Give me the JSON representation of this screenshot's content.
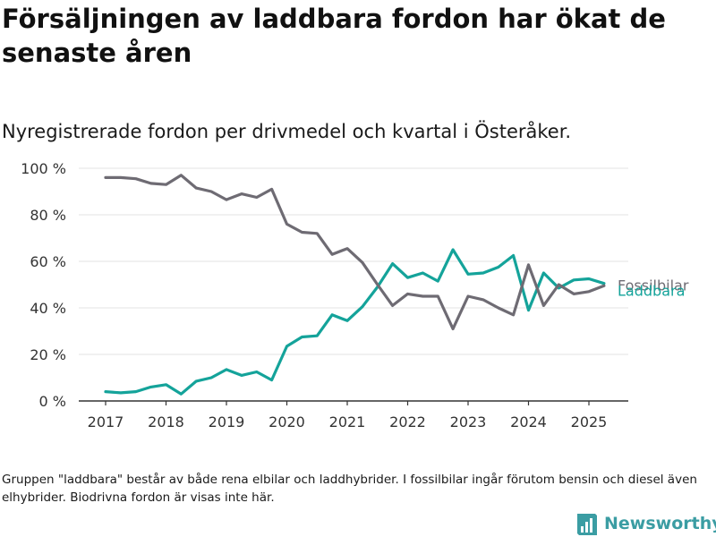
{
  "header": {
    "title": "Försäljningen av laddbara fordon har ökat de senaste åren",
    "subtitle": "Nyregistrerade fordon per drivmedel och kvartal i Österåker."
  },
  "footer": {
    "note": "Gruppen \"laddbara\" består av både rena elbilar och laddhybrider. I fossilbilar ingår förutom bensin och diesel även elhybrider. Biodrivna fordon är visas inte här.",
    "brand": "Newsworthy"
  },
  "colors": {
    "fossil": "#6e6b73",
    "laddbara": "#14a39a",
    "brand": "#3b9da3"
  },
  "chart_data": {
    "type": "line",
    "x_ticks": [
      "2017",
      "2018",
      "2019",
      "2020",
      "2021",
      "2022",
      "2023",
      "2024",
      "2025"
    ],
    "y_ticks": [
      "0 %",
      "20 %",
      "40 %",
      "60 %",
      "80 %",
      "100 %"
    ],
    "ylim": [
      0,
      100
    ],
    "grid": true,
    "x": [
      "2017Q1",
      "2017Q2",
      "2017Q3",
      "2017Q4",
      "2018Q1",
      "2018Q2",
      "2018Q3",
      "2018Q4",
      "2019Q1",
      "2019Q2",
      "2019Q3",
      "2019Q4",
      "2020Q1",
      "2020Q2",
      "2020Q3",
      "2020Q4",
      "2021Q1",
      "2021Q2",
      "2021Q3",
      "2021Q4",
      "2022Q1",
      "2022Q2",
      "2022Q3",
      "2022Q4",
      "2023Q1",
      "2023Q2",
      "2023Q3",
      "2023Q4",
      "2024Q1",
      "2024Q2",
      "2024Q3",
      "2024Q4",
      "2025Q1",
      "2025Q2"
    ],
    "series": [
      {
        "name": "Fossilbilar",
        "values": [
          96,
          96,
          95.5,
          93.5,
          93,
          97,
          91.5,
          90,
          86.5,
          89,
          87.5,
          91,
          76,
          72.5,
          72,
          63,
          65.5,
          59.5,
          50,
          41,
          46,
          45,
          45,
          31,
          45,
          43.5,
          40,
          37,
          58.5,
          41,
          50,
          46,
          47,
          49.5
        ]
      },
      {
        "name": "Laddbara",
        "values": [
          4,
          3.5,
          4,
          6,
          7,
          3,
          8.5,
          10,
          13.5,
          11,
          12.5,
          9,
          23.5,
          27.5,
          28,
          37,
          34.5,
          40.5,
          49,
          59,
          53,
          55,
          51.5,
          65,
          54.5,
          55,
          57.5,
          62.5,
          39,
          55,
          48.5,
          52,
          52.5,
          50.5
        ]
      }
    ]
  }
}
